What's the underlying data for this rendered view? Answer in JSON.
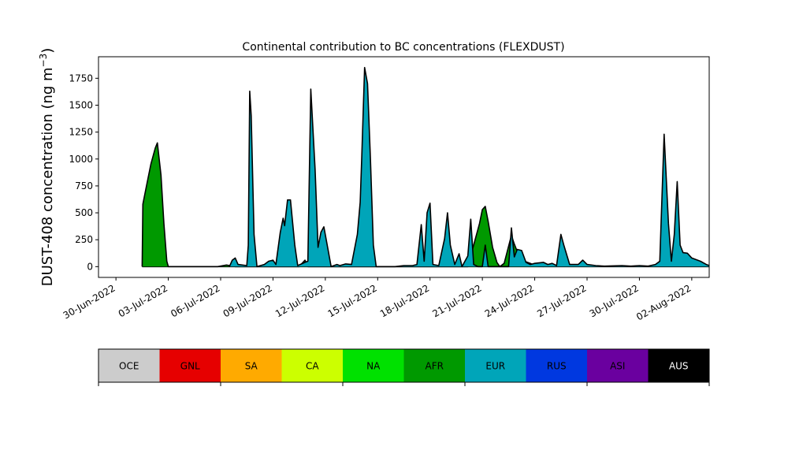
{
  "chart_data": {
    "type": "area",
    "title": "Continental contribution to BC concentrations (FLEXDUST)",
    "ylabel_main": "DUST-408 concentration (ng m",
    "ylabel_unit_sup": "−3",
    "ylabel_close": ")",
    "xlabel": "",
    "ylim": [
      -100,
      1950
    ],
    "yticks": [
      0,
      250,
      500,
      750,
      1000,
      1250,
      1500,
      1750
    ],
    "x_start": "2022-06-29",
    "x_end": "2022-08-03",
    "xticks": [
      {
        "date": "2022-06-30",
        "label": "30-Jun-2022"
      },
      {
        "date": "2022-07-03",
        "label": "03-Jul-2022"
      },
      {
        "date": "2022-07-06",
        "label": "06-Jul-2022"
      },
      {
        "date": "2022-07-09",
        "label": "09-Jul-2022"
      },
      {
        "date": "2022-07-12",
        "label": "12-Jul-2022"
      },
      {
        "date": "2022-07-15",
        "label": "15-Jul-2022"
      },
      {
        "date": "2022-07-18",
        "label": "18-Jul-2022"
      },
      {
        "date": "2022-07-21",
        "label": "21-Jul-2022"
      },
      {
        "date": "2022-07-24",
        "label": "24-Jul-2022"
      },
      {
        "date": "2022-07-27",
        "label": "27-Jul-2022"
      },
      {
        "date": "2022-07-30",
        "label": "30-Jul-2022"
      },
      {
        "date": "2022-08-02",
        "label": "02-Aug-2022"
      }
    ],
    "legend": [
      {
        "label": "OCE",
        "color": "#cccccc",
        "text_color": "#000000"
      },
      {
        "label": "GNL",
        "color": "#e60000",
        "text_color": "#000000"
      },
      {
        "label": "SA",
        "color": "#ffaa00",
        "text_color": "#000000"
      },
      {
        "label": "CA",
        "color": "#ccff00",
        "text_color": "#000000"
      },
      {
        "label": "NA",
        "color": "#00e100",
        "text_color": "#000000"
      },
      {
        "label": "AFR",
        "color": "#009900",
        "text_color": "#000000"
      },
      {
        "label": "EUR",
        "color": "#00a5b9",
        "text_color": "#000000"
      },
      {
        "label": "RUS",
        "color": "#0038e0",
        "text_color": "#000000"
      },
      {
        "label": "ASI",
        "color": "#6a009f",
        "text_color": "#000000"
      },
      {
        "label": "AUS",
        "color": "#000000",
        "text_color": "#ffffff"
      }
    ],
    "series": [
      {
        "name": "AFR",
        "color": "#009900",
        "points": [
          [
            "2022-07-01T12:00",
            0
          ],
          [
            "2022-07-01T13:00",
            580
          ],
          [
            "2022-07-01T18:00",
            750
          ],
          [
            "2022-07-02T00:00",
            950
          ],
          [
            "2022-07-02T06:00",
            1100
          ],
          [
            "2022-07-02T09:00",
            1150
          ],
          [
            "2022-07-02T14:00",
            850
          ],
          [
            "2022-07-02T18:00",
            400
          ],
          [
            "2022-07-02T22:00",
            50
          ],
          [
            "2022-07-03T00:00",
            0
          ],
          [
            "2022-07-05T20:00",
            0
          ],
          [
            "2022-07-06T08:00",
            15
          ],
          [
            "2022-07-06T20:00",
            0
          ],
          [
            "2022-07-10T12:00",
            0
          ],
          [
            "2022-07-10T20:00",
            60
          ],
          [
            "2022-07-11T00:00",
            0
          ],
          [
            "2022-07-20T04:00",
            0
          ],
          [
            "2022-07-20T12:00",
            200
          ],
          [
            "2022-07-20T20:00",
            400
          ],
          [
            "2022-07-21T00:00",
            530
          ],
          [
            "2022-07-21T04:00",
            560
          ],
          [
            "2022-07-21T08:00",
            420
          ],
          [
            "2022-07-21T14:00",
            180
          ],
          [
            "2022-07-21T20:00",
            40
          ],
          [
            "2022-07-22T00:00",
            0
          ],
          [
            "2022-07-22T06:00",
            30
          ],
          [
            "2022-07-22T16:00",
            290
          ],
          [
            "2022-07-22T20:00",
            210
          ],
          [
            "2022-07-23T00:00",
            140
          ],
          [
            "2022-07-23T06:00",
            60
          ],
          [
            "2022-07-23T18:00",
            30
          ],
          [
            "2022-07-24T00:00",
            10
          ],
          [
            "2022-07-24T12:00",
            0
          ]
        ]
      },
      {
        "name": "EUR",
        "color": "#00a5b9",
        "points": [
          [
            "2022-07-06T12:00",
            0
          ],
          [
            "2022-07-06T16:00",
            60
          ],
          [
            "2022-07-06T20:00",
            80
          ],
          [
            "2022-07-07T00:00",
            20
          ],
          [
            "2022-07-07T12:00",
            10
          ],
          [
            "2022-07-07T14:00",
            200
          ],
          [
            "2022-07-07T16:00",
            1630
          ],
          [
            "2022-07-07T18:00",
            1400
          ],
          [
            "2022-07-07T22:00",
            300
          ],
          [
            "2022-07-08T02:00",
            0
          ],
          [
            "2022-07-08T12:00",
            20
          ],
          [
            "2022-07-08T18:00",
            50
          ],
          [
            "2022-07-09T00:00",
            60
          ],
          [
            "2022-07-09T04:00",
            20
          ],
          [
            "2022-07-09T10:00",
            320
          ],
          [
            "2022-07-09T14:00",
            450
          ],
          [
            "2022-07-09T16:00",
            380
          ],
          [
            "2022-07-09T20:00",
            620
          ],
          [
            "2022-07-10T00:00",
            620
          ],
          [
            "2022-07-10T06:00",
            200
          ],
          [
            "2022-07-10T10:00",
            10
          ],
          [
            "2022-07-10T20:00",
            40
          ],
          [
            "2022-07-11T00:00",
            50
          ],
          [
            "2022-07-11T04:00",
            1650
          ],
          [
            "2022-07-11T10:00",
            900
          ],
          [
            "2022-07-11T14:00",
            180
          ],
          [
            "2022-07-11T18:00",
            320
          ],
          [
            "2022-07-11T22:00",
            370
          ],
          [
            "2022-07-12T04:00",
            150
          ],
          [
            "2022-07-12T08:00",
            0
          ],
          [
            "2022-07-12T16:00",
            20
          ],
          [
            "2022-07-12T20:00",
            10
          ],
          [
            "2022-07-13T04:00",
            25
          ],
          [
            "2022-07-13T12:00",
            20
          ],
          [
            "2022-07-13T20:00",
            300
          ],
          [
            "2022-07-14T00:00",
            600
          ],
          [
            "2022-07-14T02:00",
            1000
          ],
          [
            "2022-07-14T06:00",
            1850
          ],
          [
            "2022-07-14T10:00",
            1700
          ],
          [
            "2022-07-14T14:00",
            1000
          ],
          [
            "2022-07-14T18:00",
            200
          ],
          [
            "2022-07-14T22:00",
            0
          ],
          [
            "2022-07-16T00:00",
            0
          ],
          [
            "2022-07-16T12:00",
            10
          ],
          [
            "2022-07-17T00:00",
            10
          ],
          [
            "2022-07-17T06:00",
            20
          ],
          [
            "2022-07-17T12:00",
            390
          ],
          [
            "2022-07-17T16:00",
            50
          ],
          [
            "2022-07-17T20:00",
            500
          ],
          [
            "2022-07-18T00:00",
            590
          ],
          [
            "2022-07-18T04:00",
            20
          ],
          [
            "2022-07-18T12:00",
            10
          ],
          [
            "2022-07-18T20:00",
            260
          ],
          [
            "2022-07-19T00:00",
            500
          ],
          [
            "2022-07-19T04:00",
            200
          ],
          [
            "2022-07-19T10:00",
            20
          ],
          [
            "2022-07-19T16:00",
            120
          ],
          [
            "2022-07-19T20:00",
            0
          ],
          [
            "2022-07-20T04:00",
            100
          ],
          [
            "2022-07-20T08:00",
            440
          ],
          [
            "2022-07-20T12:00",
            20
          ],
          [
            "2022-07-20T18:00",
            0
          ],
          [
            "2022-07-21T00:00",
            0
          ],
          [
            "2022-07-21T04:00",
            200
          ],
          [
            "2022-07-21T08:00",
            0
          ],
          [
            "2022-07-22T12:00",
            0
          ],
          [
            "2022-07-22T16:00",
            360
          ],
          [
            "2022-07-22T20:00",
            90
          ],
          [
            "2022-07-23T00:00",
            160
          ],
          [
            "2022-07-23T06:00",
            150
          ],
          [
            "2022-07-23T12:00",
            40
          ],
          [
            "2022-07-23T18:00",
            20
          ],
          [
            "2022-07-24T00:00",
            30
          ],
          [
            "2022-07-24T12:00",
            40
          ],
          [
            "2022-07-24T18:00",
            20
          ],
          [
            "2022-07-25T00:00",
            30
          ],
          [
            "2022-07-25T06:00",
            10
          ],
          [
            "2022-07-25T12:00",
            300
          ],
          [
            "2022-07-25T16:00",
            200
          ],
          [
            "2022-07-26T00:00",
            20
          ],
          [
            "2022-07-26T12:00",
            20
          ],
          [
            "2022-07-26T18:00",
            60
          ],
          [
            "2022-07-27T00:00",
            20
          ],
          [
            "2022-07-27T12:00",
            10
          ],
          [
            "2022-07-28T00:00",
            5
          ],
          [
            "2022-07-29T00:00",
            10
          ],
          [
            "2022-07-29T12:00",
            5
          ],
          [
            "2022-07-30T00:00",
            10
          ],
          [
            "2022-07-30T12:00",
            5
          ],
          [
            "2022-07-30T22:00",
            20
          ],
          [
            "2022-07-31T04:00",
            50
          ],
          [
            "2022-07-31T10:00",
            1230
          ],
          [
            "2022-07-31T16:00",
            400
          ],
          [
            "2022-07-31T20:00",
            50
          ],
          [
            "2022-08-01T00:00",
            300
          ],
          [
            "2022-08-01T04:00",
            790
          ],
          [
            "2022-08-01T08:00",
            200
          ],
          [
            "2022-08-01T12:00",
            130
          ],
          [
            "2022-08-01T18:00",
            125
          ],
          [
            "2022-08-02T00:00",
            80
          ],
          [
            "2022-08-02T12:00",
            50
          ],
          [
            "2022-08-02T20:00",
            20
          ],
          [
            "2022-08-03T00:00",
            10
          ],
          [
            "2022-08-03T12:00",
            0
          ],
          [
            "2022-08-03T18:00",
            30
          ],
          [
            "2022-08-04T00:00",
            25
          ],
          [
            "2022-08-04T06:00",
            10
          ],
          [
            "2022-08-04T12:00",
            5
          ],
          [
            "2022-08-05T00:00",
            0
          ]
        ]
      }
    ]
  }
}
